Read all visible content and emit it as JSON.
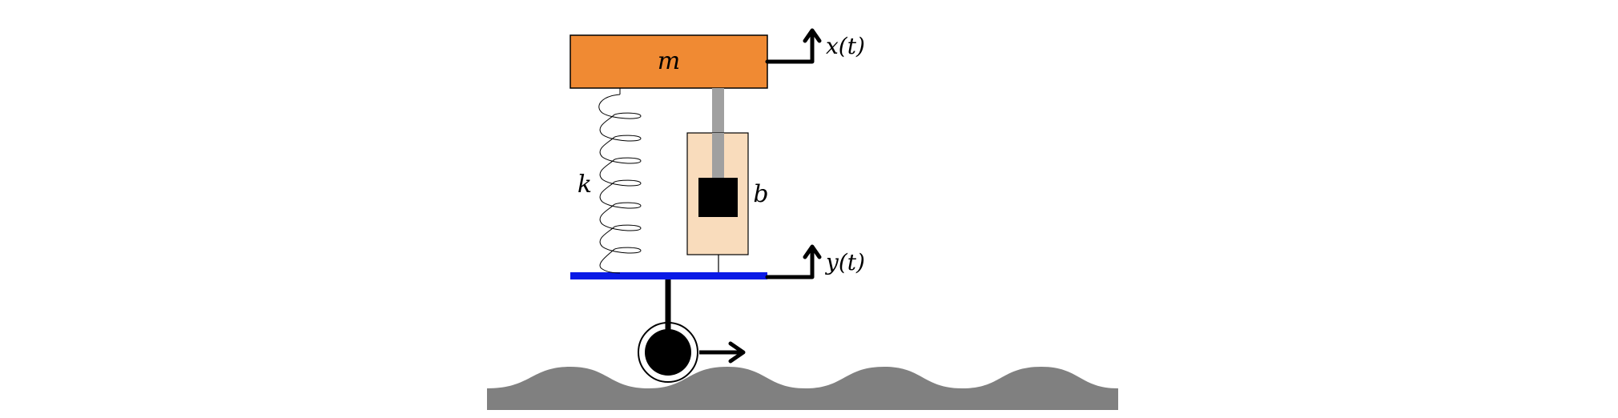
{
  "labels": {
    "mass": "m",
    "spring": "k",
    "damper": "b",
    "mass_displacement": "x(t)",
    "base_displacement": "y(t)"
  },
  "colors": {
    "mass_fill": "#F08A33",
    "damper_body_fill": "#F9DCBC",
    "damper_rod": "#A0A0A0",
    "base_plate": "#0A1AE6",
    "road": "#808080",
    "stroke": "#000000"
  },
  "icons": {
    "displacement_arrow": "up-arrow-icon",
    "motion_arrow": "right-arrow-icon"
  }
}
